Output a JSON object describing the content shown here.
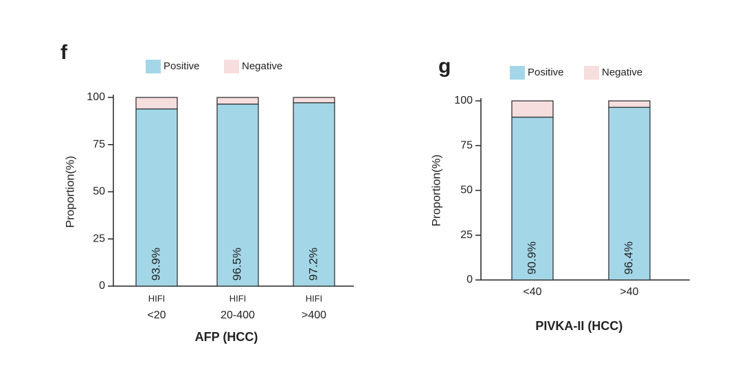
{
  "chart_data": [
    {
      "type": "stacked_bar",
      "panel": "f",
      "ylabel": "Proportion(%)",
      "xlabel": "AFP (HCC)",
      "categories": [
        [
          "HIFI",
          "<20"
        ],
        [
          "HIFI",
          "20-400"
        ],
        [
          "HIFI",
          ">400"
        ]
      ],
      "series": [
        {
          "name": "Positive",
          "color": "#a3d7e8",
          "values": [
            93.9,
            96.5,
            97.2
          ],
          "value_labels": [
            "93.9%",
            "96.5%",
            "97.2%"
          ]
        },
        {
          "name": "Negative",
          "color": "#f7dede",
          "values": [
            6.1,
            3.5,
            2.8
          ]
        }
      ],
      "ylim": [
        0,
        100
      ],
      "yticks": [
        0,
        25,
        50,
        75,
        100
      ]
    },
    {
      "type": "stacked_bar",
      "panel": "g",
      "ylabel": "Proportion(%)",
      "xlabel": "PIVKA-II (HCC)",
      "categories": [
        [
          "<40"
        ],
        [
          ">40"
        ]
      ],
      "series": [
        {
          "name": "Positive",
          "color": "#a3d7e8",
          "values": [
            90.9,
            96.4
          ],
          "value_labels": [
            "90.9%",
            "96.4%"
          ]
        },
        {
          "name": "Negative",
          "color": "#f7dede",
          "values": [
            9.1,
            3.6
          ]
        }
      ],
      "ylim": [
        0,
        100
      ],
      "yticks": [
        0,
        25,
        50,
        75,
        100
      ]
    }
  ]
}
